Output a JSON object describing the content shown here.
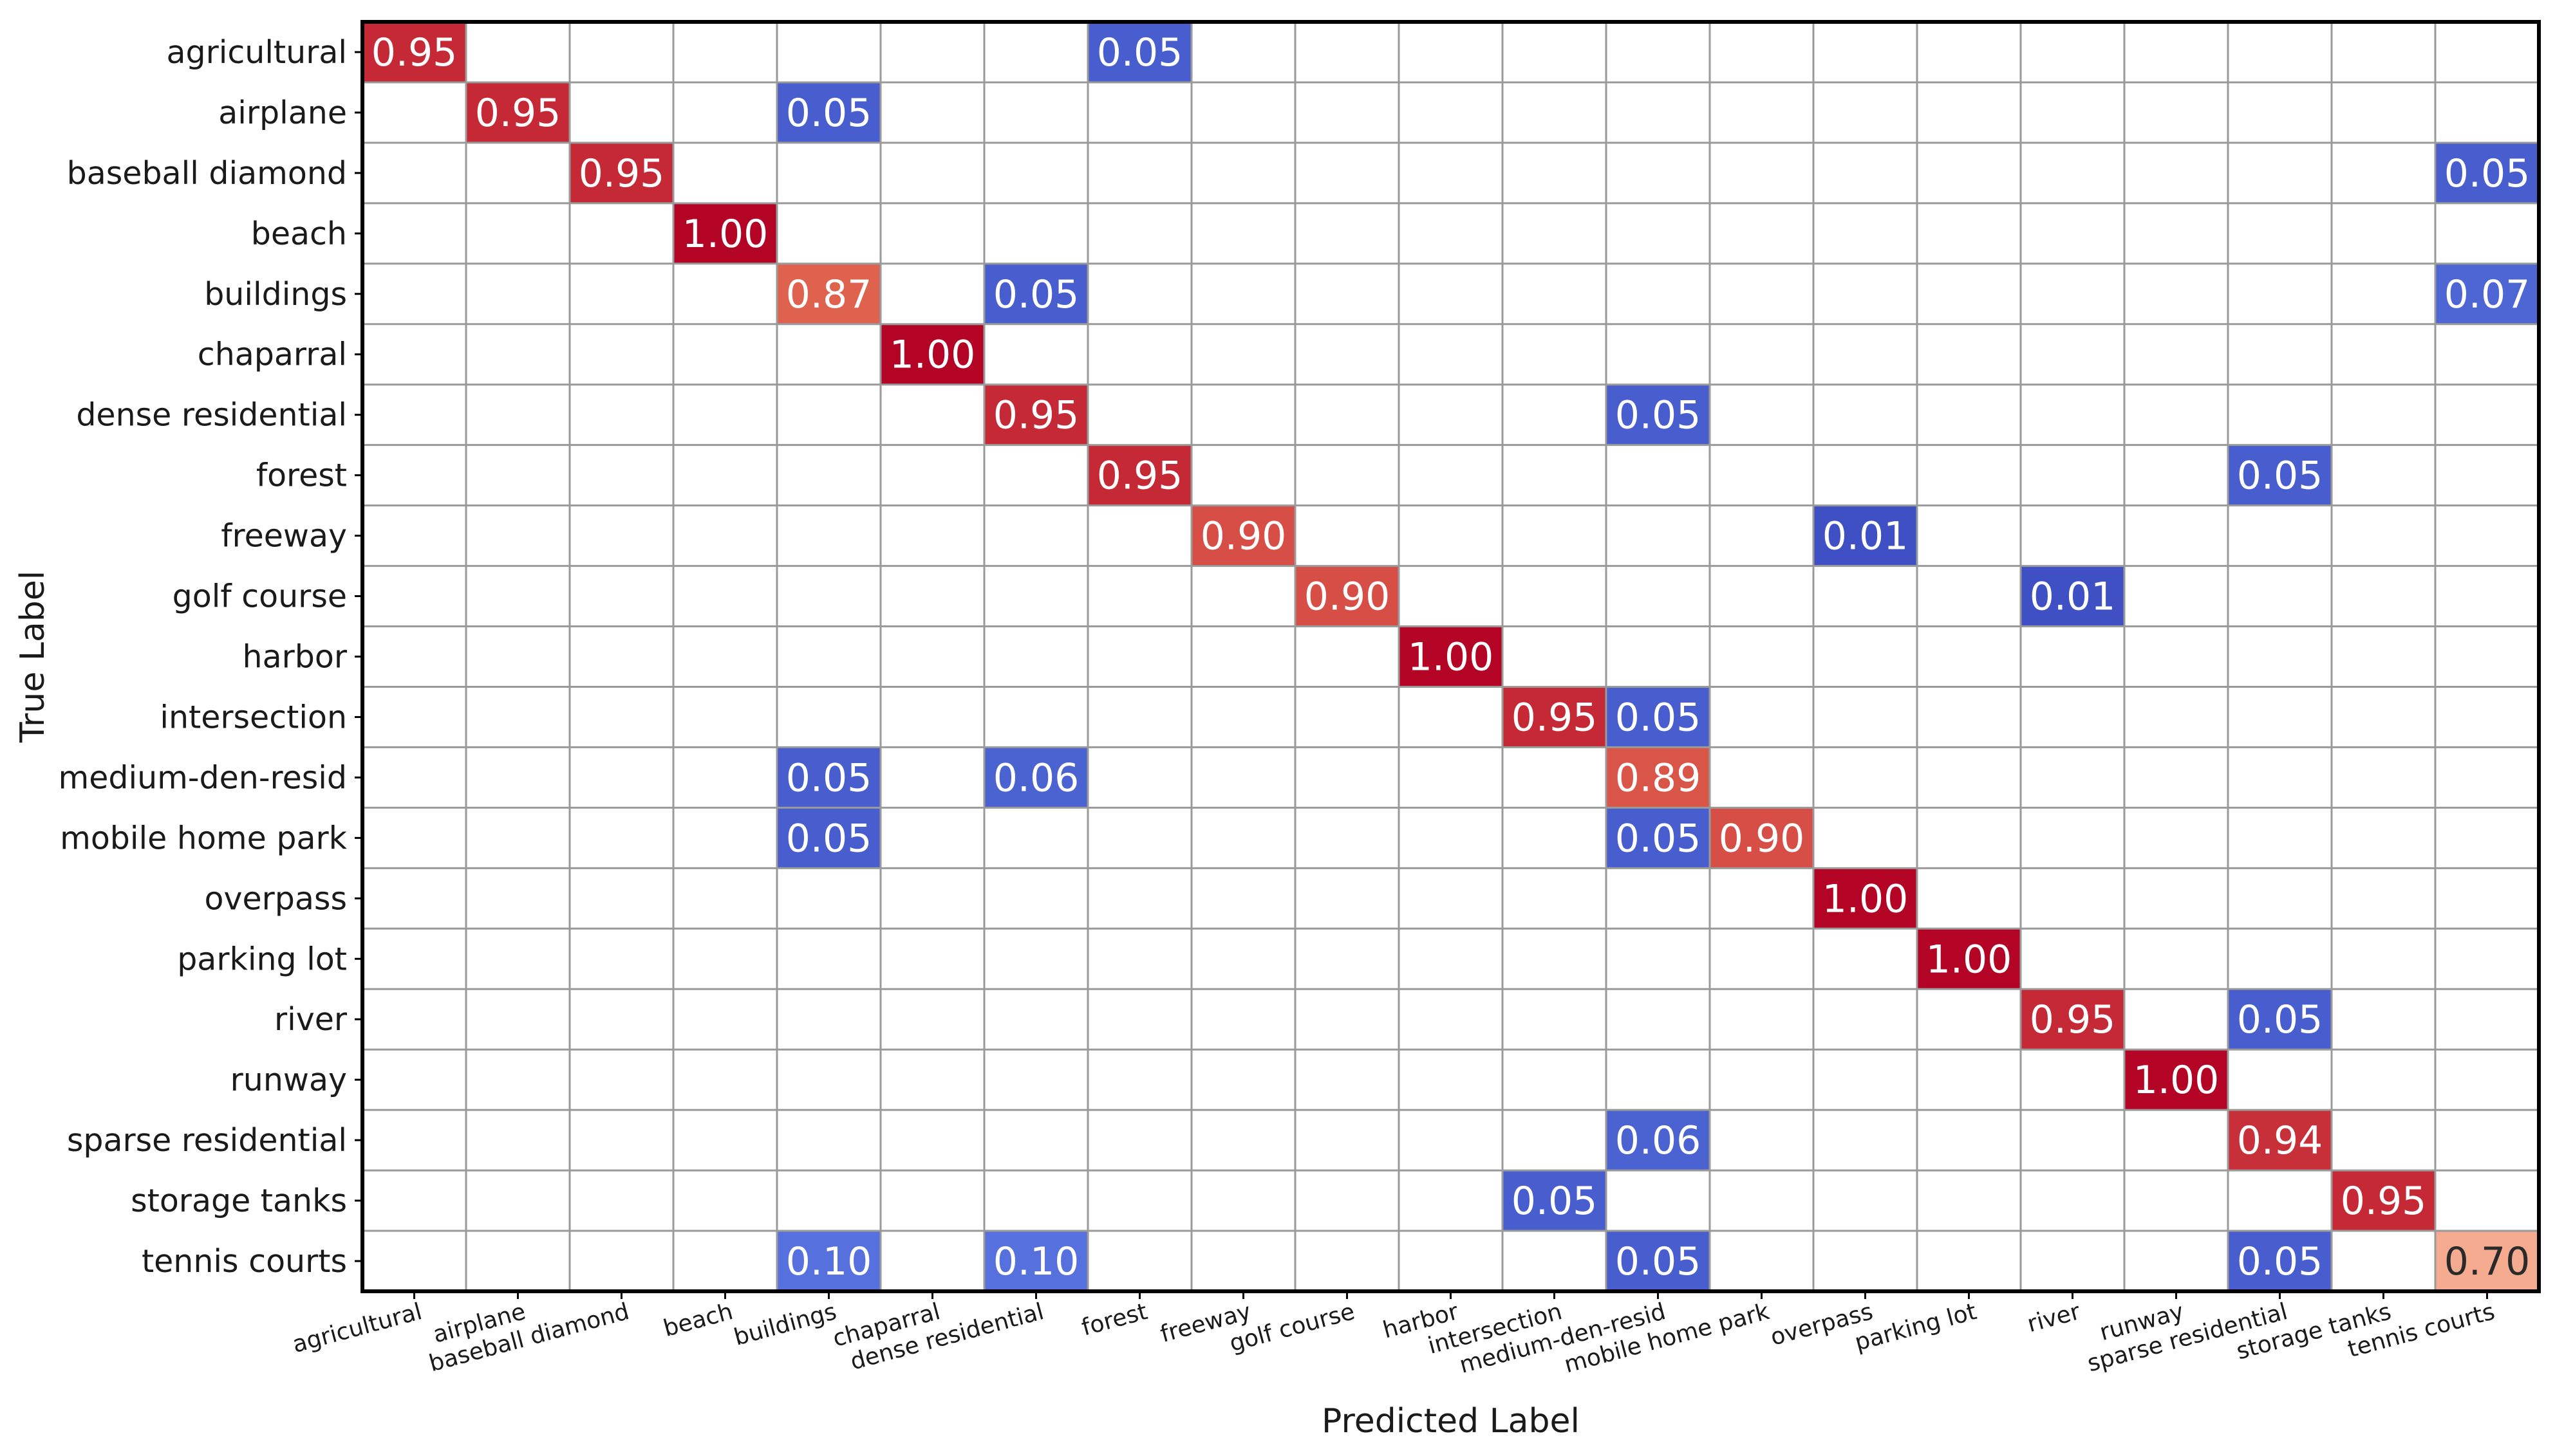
{
  "chart_data": {
    "type": "heatmap",
    "title": "",
    "xlabel": "Predicted Label",
    "ylabel": "True Label",
    "categories": [
      "agricultural",
      "airplane",
      "baseball diamond",
      "beach",
      "buildings",
      "chaparral",
      "dense residential",
      "forest",
      "freeway",
      "golf course",
      "harbor",
      "intersection",
      "medium-den-resid",
      "mobile home park",
      "overpass",
      "parking lot",
      "river",
      "runway",
      "sparse  residential",
      "storage tanks",
      "tennis courts"
    ],
    "colormap": "coolwarm",
    "value_range": [
      0,
      1
    ],
    "cells": [
      {
        "row": 0,
        "col": 0,
        "value": 0.95,
        "label": "0.95"
      },
      {
        "row": 0,
        "col": 7,
        "value": 0.05,
        "label": "0.05"
      },
      {
        "row": 1,
        "col": 1,
        "value": 0.95,
        "label": "0.95"
      },
      {
        "row": 1,
        "col": 4,
        "value": 0.05,
        "label": "0.05"
      },
      {
        "row": 2,
        "col": 2,
        "value": 0.95,
        "label": "0.95"
      },
      {
        "row": 2,
        "col": 20,
        "value": 0.05,
        "label": "0.05"
      },
      {
        "row": 3,
        "col": 3,
        "value": 1.0,
        "label": "1.00"
      },
      {
        "row": 4,
        "col": 4,
        "value": 0.87,
        "label": "0.87"
      },
      {
        "row": 4,
        "col": 6,
        "value": 0.05,
        "label": "0.05"
      },
      {
        "row": 4,
        "col": 20,
        "value": 0.07,
        "label": "0.07"
      },
      {
        "row": 5,
        "col": 5,
        "value": 1.0,
        "label": "1.00"
      },
      {
        "row": 6,
        "col": 6,
        "value": 0.95,
        "label": "0.95"
      },
      {
        "row": 6,
        "col": 12,
        "value": 0.05,
        "label": "0.05"
      },
      {
        "row": 7,
        "col": 7,
        "value": 0.95,
        "label": "0.95"
      },
      {
        "row": 7,
        "col": 18,
        "value": 0.05,
        "label": "0.05"
      },
      {
        "row": 8,
        "col": 8,
        "value": 0.9,
        "label": "0.90"
      },
      {
        "row": 8,
        "col": 14,
        "value": 0.01,
        "label": "0.01"
      },
      {
        "row": 9,
        "col": 9,
        "value": 0.9,
        "label": "0.90"
      },
      {
        "row": 9,
        "col": 16,
        "value": 0.01,
        "label": "0.01"
      },
      {
        "row": 10,
        "col": 10,
        "value": 1.0,
        "label": "1.00"
      },
      {
        "row": 11,
        "col": 11,
        "value": 0.95,
        "label": "0.95"
      },
      {
        "row": 11,
        "col": 12,
        "value": 0.05,
        "label": "0.05"
      },
      {
        "row": 12,
        "col": 4,
        "value": 0.05,
        "label": "0.05"
      },
      {
        "row": 12,
        "col": 6,
        "value": 0.06,
        "label": "0.06"
      },
      {
        "row": 12,
        "col": 12,
        "value": 0.89,
        "label": "0.89"
      },
      {
        "row": 13,
        "col": 4,
        "value": 0.05,
        "label": "0.05"
      },
      {
        "row": 13,
        "col": 12,
        "value": 0.05,
        "label": "0.05"
      },
      {
        "row": 13,
        "col": 13,
        "value": 0.9,
        "label": "0.90"
      },
      {
        "row": 14,
        "col": 14,
        "value": 1.0,
        "label": "1.00"
      },
      {
        "row": 15,
        "col": 15,
        "value": 1.0,
        "label": "1.00"
      },
      {
        "row": 16,
        "col": 16,
        "value": 0.95,
        "label": "0.95"
      },
      {
        "row": 16,
        "col": 18,
        "value": 0.05,
        "label": "0.05"
      },
      {
        "row": 17,
        "col": 17,
        "value": 1.0,
        "label": "1.00"
      },
      {
        "row": 18,
        "col": 12,
        "value": 0.06,
        "label": "0.06"
      },
      {
        "row": 18,
        "col": 18,
        "value": 0.94,
        "label": "0.94"
      },
      {
        "row": 19,
        "col": 11,
        "value": 0.05,
        "label": "0.05"
      },
      {
        "row": 19,
        "col": 19,
        "value": 0.95,
        "label": "0.95"
      },
      {
        "row": 20,
        "col": 4,
        "value": 0.1,
        "label": "0.10"
      },
      {
        "row": 20,
        "col": 6,
        "value": 0.1,
        "label": "0.10"
      },
      {
        "row": 20,
        "col": 12,
        "value": 0.05,
        "label": "0.05"
      },
      {
        "row": 20,
        "col": 18,
        "value": 0.05,
        "label": "0.05"
      },
      {
        "row": 20,
        "col": 20,
        "value": 0.7,
        "label": "0.70"
      }
    ]
  }
}
